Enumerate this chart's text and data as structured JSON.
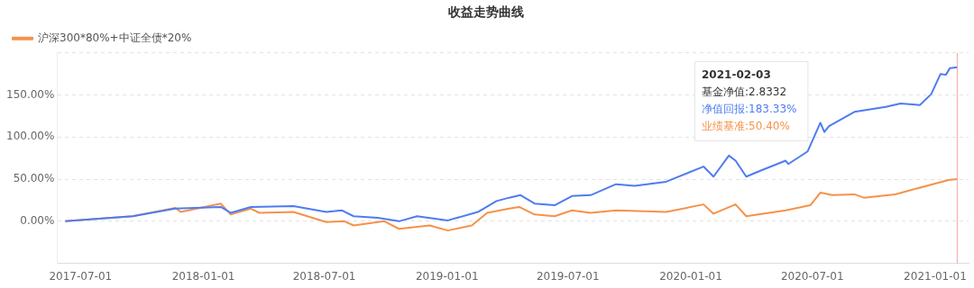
{
  "chart_data": {
    "type": "line",
    "title": "收益走势曲线",
    "xlim": [
      "2017-05-27",
      "2021-02-20"
    ],
    "xticks": [
      "2017-07-01",
      "2018-01-01",
      "2018-07-01",
      "2019-01-01",
      "2019-07-01",
      "2020-01-01",
      "2020-07-01",
      "2021-01-01"
    ],
    "ylim": [
      -50,
      200
    ],
    "yticks": [
      {
        "value": -50,
        "label": null
      },
      {
        "value": 0,
        "label": "0.00%"
      },
      {
        "value": 50,
        "label": "50.00%"
      },
      {
        "value": 100,
        "label": "100.00%"
      },
      {
        "value": 150,
        "label": "150.00%"
      },
      {
        "value": 200,
        "label": null
      }
    ],
    "grid": "y",
    "legend": "top left",
    "marker": "none",
    "line_style": "solid",
    "ref_lines": [
      {
        "axis": "x",
        "value": "2021-02-03",
        "color": "#f4a4a4"
      }
    ],
    "annotations": [
      "2021-02-03",
      "基金净值:2.8332",
      "净值回报:183.33%",
      "业绩基准:50.40%"
    ],
    "series": [
      {
        "color": "#4e7cf0",
        "x": [
          "2017-06-08",
          "2017-09-17",
          "2017-11-20",
          "2018-01-27",
          "2018-02-11",
          "2018-03-13",
          "2018-05-16",
          "2018-07-04",
          "2018-07-27",
          "2018-08-14",
          "2018-09-19",
          "2018-10-21",
          "2018-11-17",
          "2019-01-02",
          "2019-02-16",
          "2019-03-16",
          "2019-04-04",
          "2019-04-21",
          "2019-05-12",
          "2019-06-11",
          "2019-07-07",
          "2019-08-04",
          "2019-09-11",
          "2019-10-09",
          "2019-11-25",
          "2020-01-20",
          "2020-02-04",
          "2020-02-27",
          "2020-03-08",
          "2020-03-24",
          "2020-04-14",
          "2020-05-22",
          "2020-05-26",
          "2020-06-24",
          "2020-07-13",
          "2020-07-19",
          "2020-07-26",
          "2020-09-02",
          "2020-10-19",
          "2020-11-10",
          "2020-12-09",
          "2020-12-26",
          "2021-01-09",
          "2021-01-17",
          "2021-01-23",
          "2021-02-03"
        ],
        "values": [
          0,
          6,
          15,
          17,
          10,
          17,
          18,
          11,
          13,
          6,
          4,
          0,
          6,
          1,
          11,
          24,
          28,
          31,
          21,
          19,
          30,
          31,
          44,
          42,
          47,
          65,
          53,
          78,
          72,
          53,
          60,
          72,
          68,
          83,
          117,
          106,
          113,
          130,
          136,
          140,
          138,
          151,
          175,
          174,
          182,
          183
        ]
      },
      {
        "name": "沪深300*80%+中证全债*20%",
        "color": "#f5924a",
        "x": [
          "2017-06-08",
          "2017-09-17",
          "2017-11-20",
          "2017-11-28",
          "2018-01-27",
          "2018-02-11",
          "2018-03-13",
          "2018-03-26",
          "2018-05-16",
          "2018-07-04",
          "2018-07-31",
          "2018-08-14",
          "2018-09-29",
          "2018-10-21",
          "2018-12-06",
          "2019-01-02",
          "2019-02-07",
          "2019-03-02",
          "2019-04-04",
          "2019-04-19",
          "2019-05-12",
          "2019-06-11",
          "2019-07-07",
          "2019-08-04",
          "2019-09-11",
          "2019-11-25",
          "2020-01-20",
          "2020-02-04",
          "2020-03-08",
          "2020-03-24",
          "2020-05-22",
          "2020-06-28",
          "2020-07-13",
          "2020-07-31",
          "2020-09-02",
          "2020-09-16",
          "2020-11-02",
          "2021-01-21",
          "2021-02-03"
        ],
        "values": [
          0,
          6,
          16,
          11,
          21,
          8,
          15,
          10,
          11,
          -1,
          0,
          -5,
          0,
          -9,
          -5,
          -11,
          -5,
          10,
          15,
          17,
          8,
          6,
          13,
          10,
          13,
          11,
          20,
          9,
          20,
          6,
          13,
          19,
          34,
          31,
          32,
          28,
          32,
          49,
          50
        ]
      }
    ]
  }
}
